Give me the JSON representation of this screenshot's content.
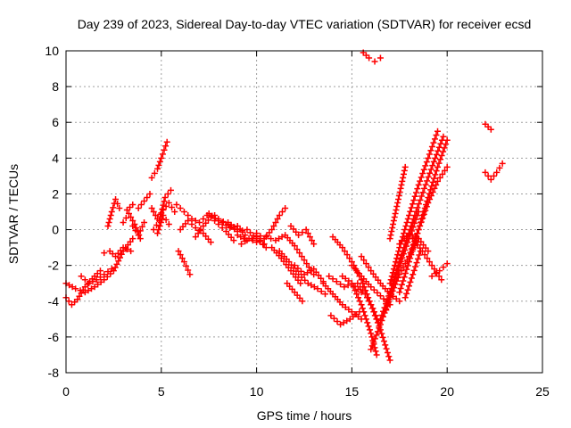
{
  "chart_data": {
    "type": "scatter",
    "title": "Day 239 of 2023, Sidereal Day-to-day VTEC variation (SDTVAR) for receiver ecsd",
    "xlabel": "GPS time / hours",
    "ylabel": "SDTVAR / TECUs",
    "xlim": [
      0,
      25
    ],
    "ylim": [
      -8,
      10
    ],
    "xticks": [
      "0",
      "5",
      "10",
      "15",
      "20",
      "25"
    ],
    "yticks": [
      "-8",
      "-6",
      "-4",
      "-2",
      "0",
      "2",
      "4",
      "6",
      "8",
      "10"
    ],
    "grid": true,
    "marker": "+",
    "color": "#ff0000",
    "series": [
      {
        "name": "t1",
        "x": [
          0.0,
          0.5,
          1.0,
          1.5,
          2.0,
          2.5,
          3.0,
          3.5
        ],
        "y": [
          -3.0,
          -3.3,
          -3.5,
          -3.2,
          -2.8,
          -2.3,
          -1.2,
          -0.5
        ]
      },
      {
        "name": "t2",
        "x": [
          0.0,
          0.3,
          0.6,
          1.0,
          1.5,
          1.8
        ],
        "y": [
          -3.8,
          -4.2,
          -3.9,
          -3.2,
          -2.6,
          -2.3
        ]
      },
      {
        "name": "t3",
        "x": [
          0.8,
          1.2,
          1.6,
          2.0,
          2.4
        ],
        "y": [
          -2.6,
          -3.0,
          -2.8,
          -2.5,
          -2.2
        ]
      },
      {
        "name": "t4",
        "x": [
          2.0,
          2.3,
          2.6,
          3.0,
          3.4
        ],
        "y": [
          -1.3,
          -1.2,
          -1.5,
          -1.0,
          -1.2
        ]
      },
      {
        "name": "t5",
        "x": [
          2.2,
          2.4,
          2.6,
          2.8
        ],
        "y": [
          0.2,
          1.0,
          1.7,
          1.2
        ]
      },
      {
        "name": "t6",
        "x": [
          3.0,
          3.3,
          3.6,
          3.9
        ],
        "y": [
          0.4,
          0.9,
          0.3,
          -0.5
        ]
      },
      {
        "name": "t7",
        "x": [
          3.2,
          3.5,
          3.8,
          4.1,
          4.4
        ],
        "y": [
          1.1,
          1.4,
          1.2,
          1.6,
          2.0
        ]
      },
      {
        "name": "t8",
        "x": [
          3.5,
          3.8,
          4.1
        ],
        "y": [
          0.2,
          -0.3,
          0.4
        ]
      },
      {
        "name": "t9",
        "x": [
          4.5,
          4.8,
          5.0,
          5.3
        ],
        "y": [
          2.9,
          3.4,
          4.0,
          4.9
        ]
      },
      {
        "name": "t10",
        "x": [
          4.5,
          4.8,
          5.1,
          5.4,
          5.7
        ],
        "y": [
          1.2,
          0.6,
          1.1,
          1.5,
          1.0
        ]
      },
      {
        "name": "t11",
        "x": [
          4.6,
          4.9,
          5.2,
          5.5
        ],
        "y": [
          0.0,
          0.5,
          1.8,
          2.2
        ]
      },
      {
        "name": "t12",
        "x": [
          4.8,
          5.1,
          5.4
        ],
        "y": [
          -0.2,
          0.8,
          0.3
        ]
      },
      {
        "name": "t13",
        "x": [
          5.8,
          6.2,
          6.6,
          7.0,
          7.4
        ],
        "y": [
          1.4,
          1.0,
          0.6,
          0.4,
          0.8
        ]
      },
      {
        "name": "t14",
        "x": [
          5.9,
          6.2,
          6.5
        ],
        "y": [
          -1.2,
          -1.8,
          -2.5
        ]
      },
      {
        "name": "t15",
        "x": [
          6.0,
          6.4,
          6.8,
          7.2,
          7.6
        ],
        "y": [
          0.0,
          0.5,
          0.1,
          -0.2,
          -0.7
        ]
      },
      {
        "name": "t16",
        "x": [
          6.8,
          7.2,
          7.6,
          8.0,
          8.4,
          8.8
        ],
        "y": [
          -0.4,
          0.2,
          0.7,
          0.3,
          -0.1,
          -0.6
        ]
      },
      {
        "name": "t17",
        "x": [
          7.5,
          8.0,
          8.5,
          9.0
        ],
        "y": [
          0.9,
          0.5,
          0.4,
          0.0
        ]
      },
      {
        "name": "t18",
        "x": [
          7.8,
          8.2,
          8.6,
          9.0,
          9.4
        ],
        "y": [
          0.8,
          0.4,
          0.1,
          0.2,
          -0.3
        ]
      },
      {
        "name": "t19",
        "x": [
          8.5,
          9.0,
          9.5,
          10.0,
          10.5
        ],
        "y": [
          0.3,
          -0.1,
          0.0,
          -0.5,
          -1.0
        ]
      },
      {
        "name": "t20",
        "x": [
          9.0,
          9.5,
          10.0,
          10.4
        ],
        "y": [
          -0.3,
          -0.6,
          -0.4,
          -0.8
        ]
      },
      {
        "name": "t21",
        "x": [
          9.2,
          9.6,
          10.0
        ],
        "y": [
          -0.8,
          -0.5,
          -0.7
        ]
      },
      {
        "name": "t22",
        "x": [
          10.0,
          10.4,
          10.8,
          11.2,
          11.5
        ],
        "y": [
          -0.2,
          -0.5,
          0.0,
          0.8,
          1.2
        ]
      },
      {
        "name": "t23",
        "x": [
          10.5,
          11.0,
          11.5,
          12.0,
          12.5,
          13.0
        ],
        "y": [
          -0.4,
          -0.6,
          -0.3,
          -0.9,
          -1.7,
          -2.5
        ]
      },
      {
        "name": "t24",
        "x": [
          10.8,
          11.3,
          11.8,
          12.3
        ],
        "y": [
          -1.0,
          -1.6,
          -2.3,
          -3.0
        ]
      },
      {
        "name": "t25",
        "x": [
          11.2,
          11.7,
          12.2,
          12.7,
          13.2,
          13.6
        ],
        "y": [
          -1.2,
          -1.8,
          -2.5,
          -3.0,
          -3.3,
          -3.6
        ]
      },
      {
        "name": "t26",
        "x": [
          11.6,
          12.0,
          12.4
        ],
        "y": [
          -3.0,
          -3.5,
          -4.0
        ]
      },
      {
        "name": "t27",
        "x": [
          12.0,
          12.5,
          13.0,
          13.5
        ],
        "y": [
          -2.0,
          -2.5,
          -2.2,
          -2.9
        ]
      },
      {
        "name": "t28",
        "x": [
          11.8,
          12.2,
          12.6,
          13.0
        ],
        "y": [
          0.2,
          -0.3,
          0.0,
          -0.8
        ]
      },
      {
        "name": "t29",
        "x": [
          13.5,
          14.0,
          14.5,
          15.0,
          15.5
        ],
        "y": [
          -3.0,
          -3.6,
          -4.2,
          -4.6,
          -5.0
        ]
      },
      {
        "name": "t30",
        "x": [
          13.8,
          14.2,
          14.6,
          15.0,
          15.5
        ],
        "y": [
          -2.6,
          -2.9,
          -3.2,
          -3.0,
          -3.5
        ]
      },
      {
        "name": "t31",
        "x": [
          13.9,
          14.4,
          14.9,
          15.4
        ],
        "y": [
          -4.8,
          -5.3,
          -5.0,
          -4.6
        ]
      },
      {
        "name": "t32",
        "x": [
          14.0,
          14.5,
          15.0,
          15.5,
          16.0,
          16.5,
          17.0
        ],
        "y": [
          -0.4,
          -1.0,
          -1.8,
          -2.8,
          -4.2,
          -5.6,
          -7.3
        ]
      },
      {
        "name": "t33",
        "x": [
          14.5,
          15.0,
          15.5,
          16.0,
          16.3
        ],
        "y": [
          -2.6,
          -3.0,
          -4.2,
          -5.8,
          -7.0
        ]
      },
      {
        "name": "t34",
        "x": [
          15.0,
          15.5,
          16.0,
          16.5,
          17.0
        ],
        "y": [
          -2.0,
          -2.6,
          -3.2,
          -3.7,
          -4.2
        ]
      },
      {
        "name": "t35",
        "x": [
          15.3,
          15.7,
          16.1,
          16.4
        ],
        "y": [
          -3.0,
          -3.6,
          -4.4,
          -5.2
        ]
      },
      {
        "name": "t36",
        "x": [
          15.5,
          16.0,
          16.5,
          17.0,
          17.5
        ],
        "y": [
          -1.5,
          -2.3,
          -3.0,
          -3.6,
          -4.0
        ]
      },
      {
        "name": "t37",
        "x": [
          16.0,
          16.5,
          17.0,
          17.5,
          18.0,
          18.5
        ],
        "y": [
          -6.7,
          -5.3,
          -3.8,
          -2.5,
          -1.5,
          -0.5
        ]
      },
      {
        "name": "t38",
        "x": [
          16.5,
          17.0,
          17.5,
          18.0,
          18.5
        ],
        "y": [
          -5.0,
          -3.5,
          -2.0,
          -0.5,
          1.0
        ]
      },
      {
        "name": "t39",
        "x": [
          16.8,
          17.3,
          17.8,
          18.3,
          18.8,
          19.3,
          19.8
        ],
        "y": [
          -4.5,
          -2.5,
          -0.8,
          0.8,
          2.3,
          3.8,
          5.2
        ]
      },
      {
        "name": "t40",
        "x": [
          17.0,
          17.5,
          18.0,
          18.5,
          19.0,
          19.5
        ],
        "y": [
          -3.0,
          -1.0,
          0.8,
          2.5,
          4.0,
          5.5
        ]
      },
      {
        "name": "t41",
        "x": [
          17.5,
          18.0,
          18.5,
          19.0,
          19.5,
          20.0
        ],
        "y": [
          -3.5,
          -1.8,
          0.0,
          1.8,
          3.5,
          5.0
        ]
      },
      {
        "name": "t42",
        "x": [
          17.0,
          17.4,
          17.8
        ],
        "y": [
          -0.5,
          1.5,
          3.5
        ]
      },
      {
        "name": "t43",
        "x": [
          17.8,
          18.2,
          18.6
        ],
        "y": [
          -3.8,
          -2.5,
          -1.2
        ]
      },
      {
        "name": "t44",
        "x": [
          18.0,
          18.5,
          19.0,
          19.5,
          20.0
        ],
        "y": [
          -1.5,
          0.0,
          1.5,
          2.7,
          3.5
        ]
      },
      {
        "name": "t45",
        "x": [
          17.5,
          18.0,
          18.5,
          19.0
        ],
        "y": [
          -0.8,
          -0.2,
          -0.5,
          -1.2
        ]
      },
      {
        "name": "t46",
        "x": [
          18.2,
          18.7,
          19.2,
          19.7
        ],
        "y": [
          -0.5,
          -1.2,
          -2.0,
          -2.8
        ]
      },
      {
        "name": "t47",
        "x": [
          19.2,
          19.6,
          20.0
        ],
        "y": [
          -2.6,
          -2.3,
          -1.9
        ]
      },
      {
        "name": "t48",
        "x": [
          15.6,
          15.9,
          16.2,
          16.5
        ],
        "y": [
          9.9,
          9.6,
          9.4,
          9.6
        ]
      },
      {
        "name": "t49",
        "x": [
          22.0,
          22.3
        ],
        "y": [
          5.9,
          5.6
        ]
      },
      {
        "name": "t50",
        "x": [
          22.0,
          22.3,
          22.6,
          22.9
        ],
        "y": [
          3.2,
          2.8,
          3.2,
          3.7
        ]
      }
    ]
  }
}
